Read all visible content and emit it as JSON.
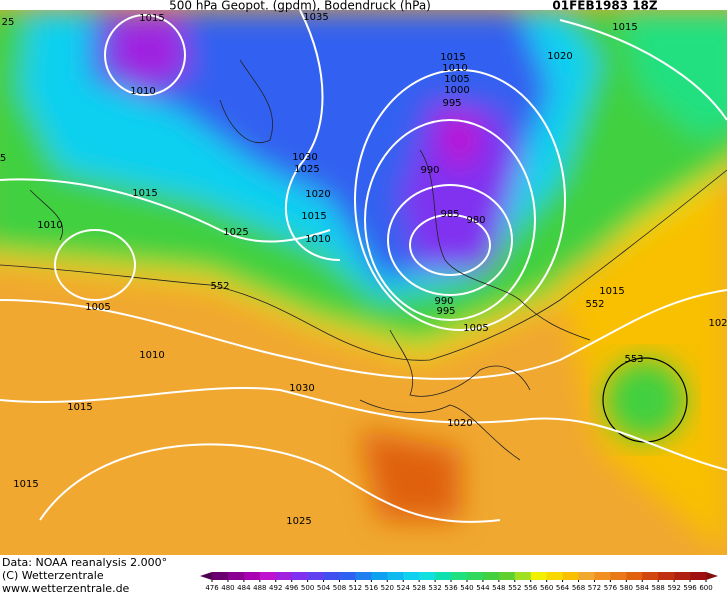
{
  "header": {
    "title": "500 hPa Geopot. (gpdm), Bodendruck (hPa)",
    "date": "01FEB1983 18Z"
  },
  "map_labels": [
    "1015",
    "1035",
    "1015",
    "25",
    "1010",
    "1020",
    "1015",
    "1010",
    "1005",
    "1000",
    "995",
    "1030",
    "1025",
    "5",
    "990",
    "1015",
    "1020",
    "1015",
    "985",
    "980",
    "1010",
    "1025",
    "1010",
    "552",
    "1005",
    "1015",
    "990",
    "995",
    "552",
    "1005",
    "102",
    "1010",
    "553",
    "1030",
    "1015",
    "1020",
    "1015",
    "1025"
  ],
  "footer": {
    "source": "Data: NOAA reanalysis 2.000°",
    "copyright": "(C) Wetterzentrale",
    "url": "www.wetterzentrale.de"
  },
  "colorbar": {
    "ticks": [
      476,
      480,
      484,
      488,
      492,
      496,
      500,
      504,
      508,
      512,
      516,
      520,
      524,
      528,
      532,
      536,
      540,
      544,
      548,
      552,
      556,
      560,
      564,
      568,
      572,
      576,
      580,
      584,
      588,
      592,
      596,
      600
    ],
    "colors": [
      "#6a0070",
      "#8a0090",
      "#a800b0",
      "#c010d0",
      "#a020e0",
      "#8030f0",
      "#6040f0",
      "#4050f0",
      "#3060f0",
      "#2080f0",
      "#10a0f0",
      "#10b8f0",
      "#10d0f0",
      "#10e0e0",
      "#10e0b0",
      "#20e080",
      "#30d860",
      "#40d040",
      "#60d030",
      "#a0e020",
      "#f0f000",
      "#f8d800",
      "#f8c000",
      "#f0a830",
      "#f09020",
      "#e87818",
      "#e06010",
      "#d04810",
      "#c03010",
      "#b02010",
      "#a01010"
    ]
  }
}
